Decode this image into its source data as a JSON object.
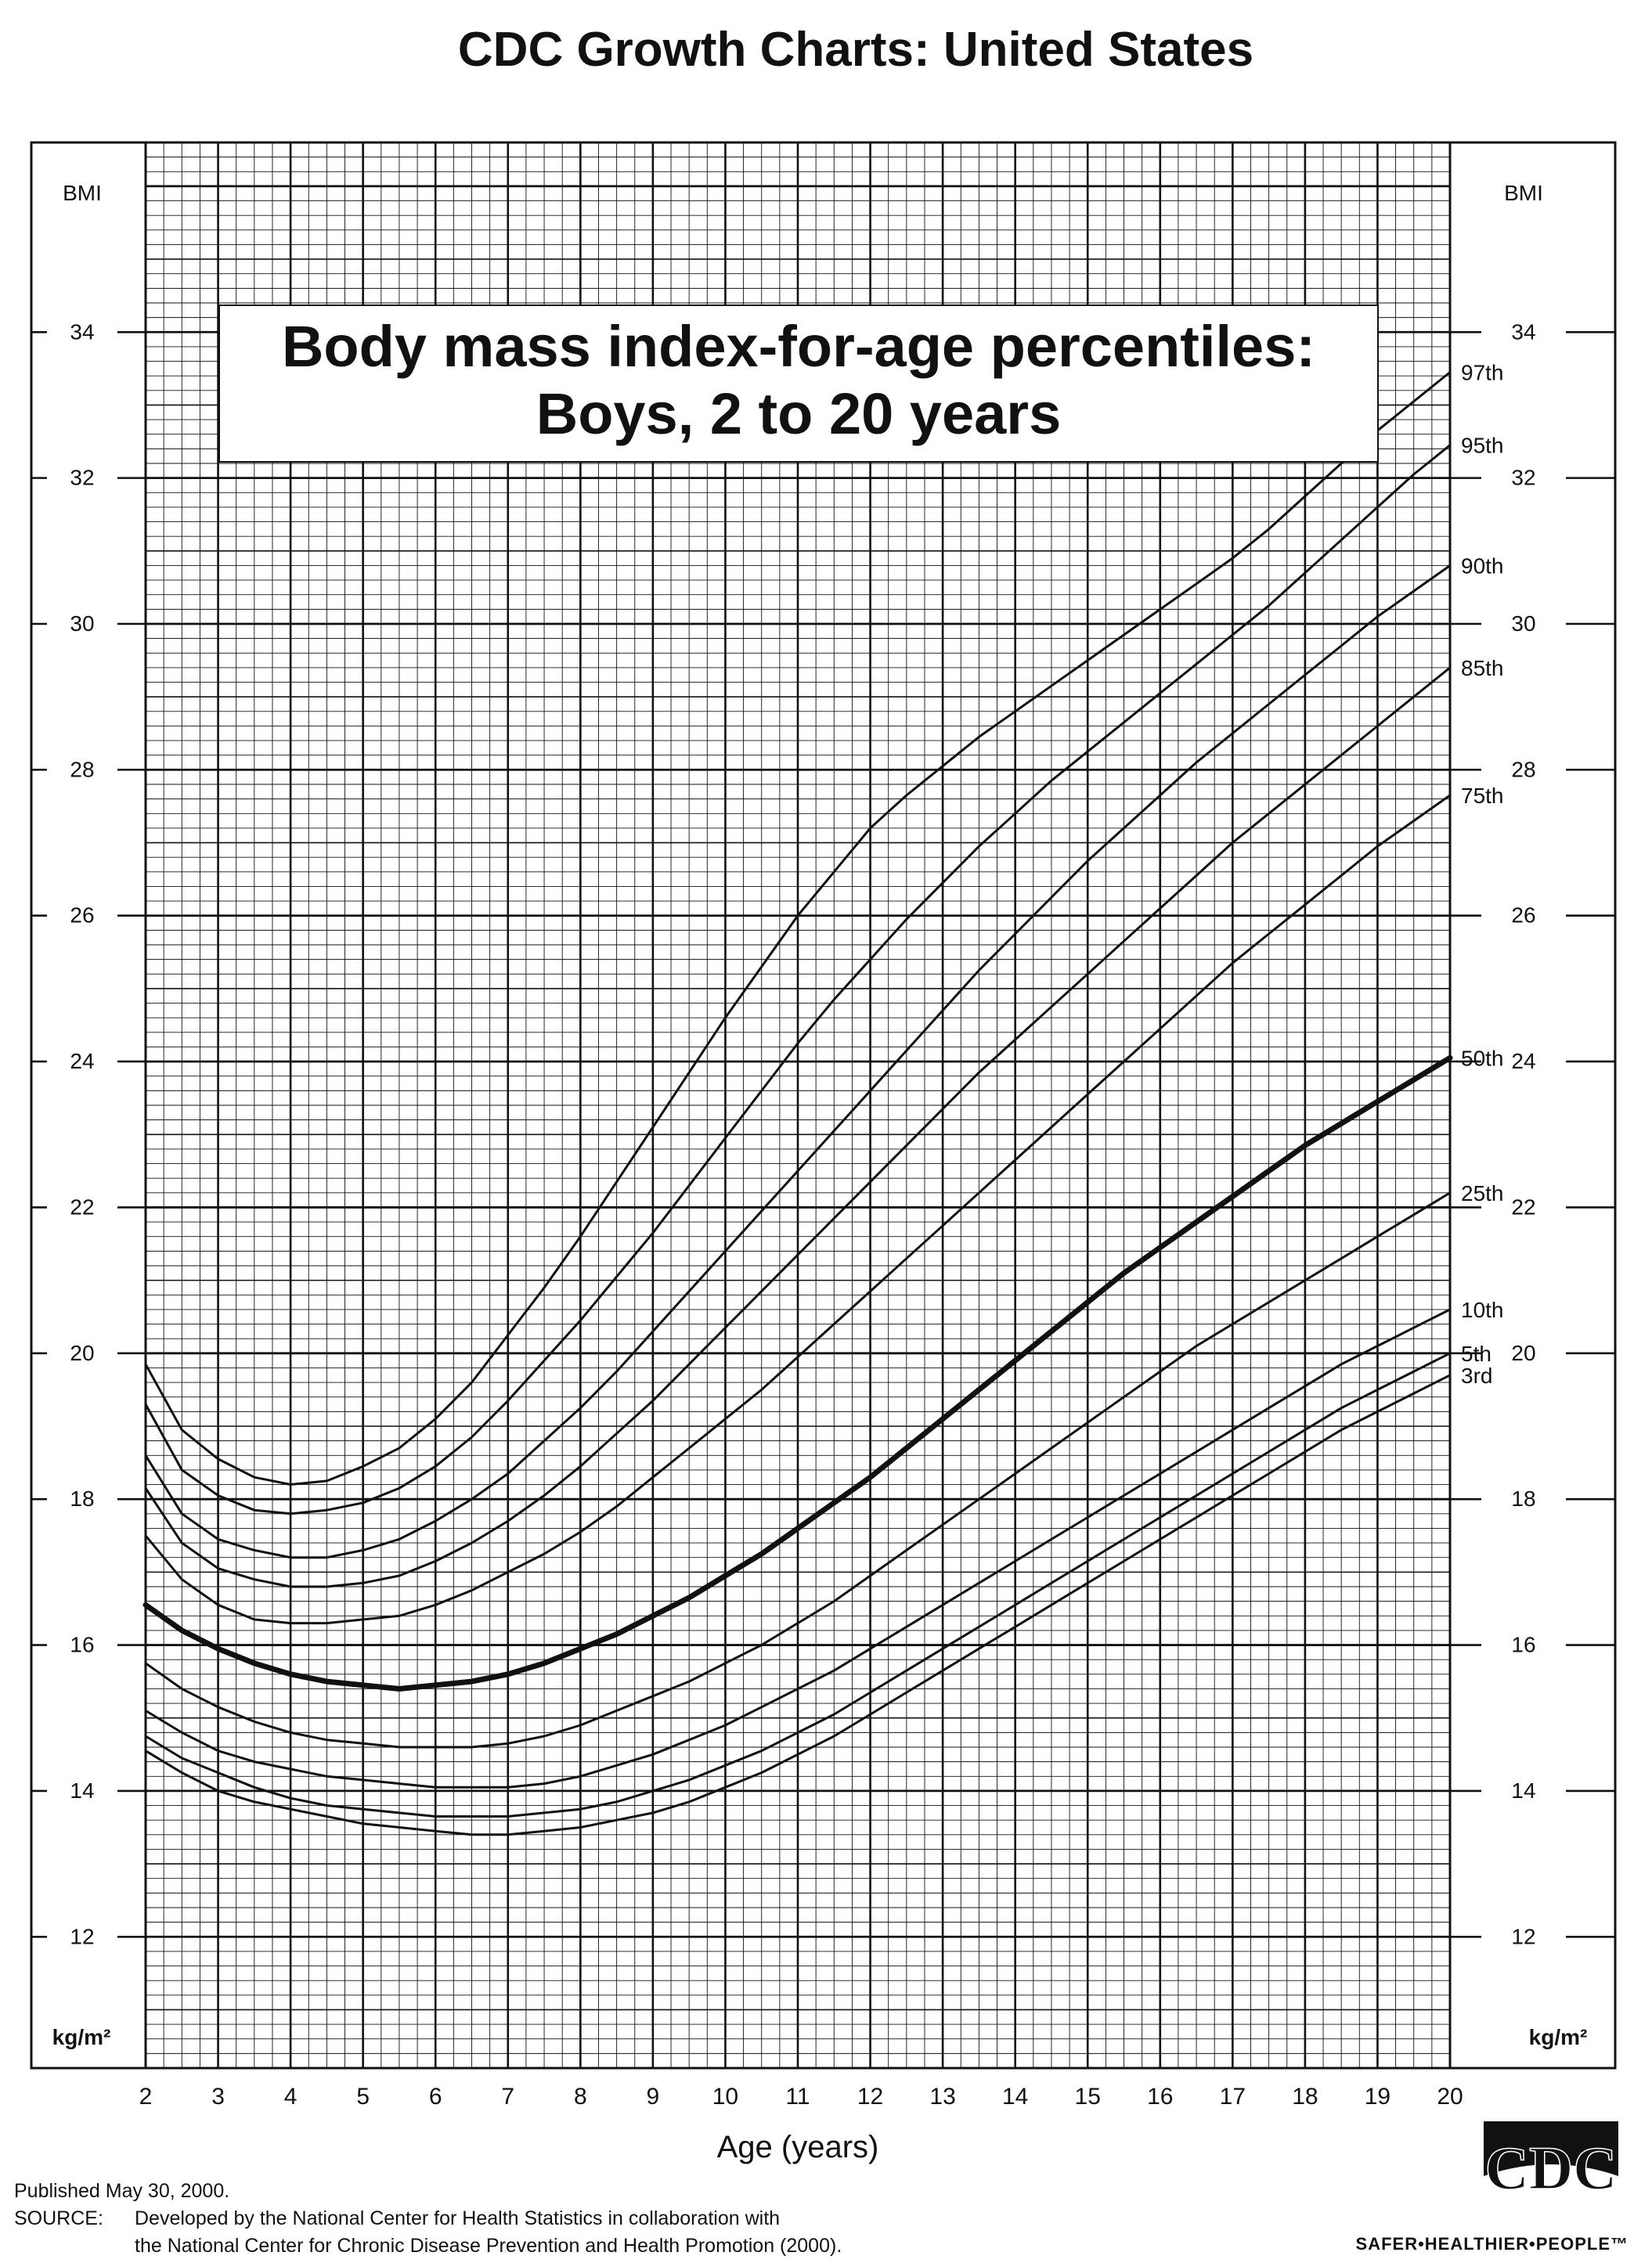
{
  "header": {
    "title": "CDC Growth Charts: United States"
  },
  "chart_data": {
    "type": "line",
    "title": "Body mass index-for-age percentiles:",
    "subtitle": "Boys, 2 to 20 years",
    "xlabel": "Age (years)",
    "ylabel_top": "BMI",
    "ylabel_unit": "kg/m²",
    "xlim": [
      2,
      20
    ],
    "ylim": [
      10.2,
      36.6
    ],
    "x_ticks": [
      2,
      3,
      4,
      5,
      6,
      7,
      8,
      9,
      10,
      11,
      12,
      13,
      14,
      15,
      16,
      17,
      18,
      19,
      20
    ],
    "x_tick_labels": [
      "2",
      "3",
      "4",
      "5",
      "6",
      "7",
      "8",
      "9",
      "10",
      "11",
      "12",
      "13",
      "14",
      "15",
      "16",
      "17",
      "18",
      "19",
      "20"
    ],
    "y_ticks": [
      12,
      14,
      16,
      18,
      20,
      22,
      24,
      26,
      28,
      30,
      32,
      34
    ],
    "y_tick_labels": [
      "12",
      "14",
      "16",
      "18",
      "20",
      "22",
      "24",
      "26",
      "28",
      "30",
      "32",
      "34"
    ],
    "grid": true,
    "x": [
      2,
      2.5,
      3,
      3.5,
      4,
      4.5,
      5,
      5.5,
      6,
      6.5,
      7,
      7.5,
      8,
      8.5,
      9,
      9.5,
      10,
      10.5,
      11,
      11.5,
      12,
      12.5,
      13,
      13.5,
      14,
      14.5,
      15,
      15.5,
      16,
      16.5,
      17,
      17.5,
      18,
      18.5,
      19,
      19.5,
      20
    ],
    "series": [
      {
        "name": "97th",
        "values": [
          19.85,
          18.95,
          18.55,
          18.3,
          18.2,
          18.25,
          18.45,
          18.7,
          19.1,
          19.6,
          20.25,
          20.9,
          21.6,
          22.35,
          23.1,
          23.85,
          24.6,
          25.3,
          26.0,
          26.6,
          27.2,
          27.65,
          28.05,
          28.45,
          28.8,
          29.15,
          29.5,
          29.85,
          30.2,
          30.55,
          30.9,
          31.3,
          31.75,
          32.2,
          32.65,
          33.05,
          33.45
        ],
        "bold": false
      },
      {
        "name": "95th",
        "values": [
          19.3,
          18.4,
          18.05,
          17.85,
          17.8,
          17.85,
          17.95,
          18.15,
          18.45,
          18.85,
          19.35,
          19.9,
          20.45,
          21.05,
          21.65,
          22.3,
          22.95,
          23.6,
          24.25,
          24.85,
          25.4,
          25.95,
          26.45,
          26.95,
          27.4,
          27.85,
          28.25,
          28.65,
          29.05,
          29.45,
          29.85,
          30.25,
          30.7,
          31.15,
          31.6,
          32.05,
          32.45
        ],
        "bold": false
      },
      {
        "name": "90th",
        "values": [
          18.6,
          17.8,
          17.45,
          17.3,
          17.2,
          17.2,
          17.3,
          17.45,
          17.7,
          18.0,
          18.35,
          18.8,
          19.25,
          19.75,
          20.3,
          20.85,
          21.4,
          21.95,
          22.5,
          23.05,
          23.6,
          24.15,
          24.7,
          25.25,
          25.75,
          26.25,
          26.75,
          27.2,
          27.65,
          28.1,
          28.5,
          28.9,
          29.3,
          29.7,
          30.1,
          30.45,
          30.8
        ],
        "bold": false
      },
      {
        "name": "85th",
        "values": [
          18.15,
          17.4,
          17.05,
          16.9,
          16.8,
          16.8,
          16.85,
          16.95,
          17.15,
          17.4,
          17.7,
          18.05,
          18.45,
          18.9,
          19.35,
          19.85,
          20.35,
          20.85,
          21.35,
          21.85,
          22.35,
          22.85,
          23.35,
          23.85,
          24.3,
          24.75,
          25.2,
          25.65,
          26.1,
          26.55,
          27.0,
          27.4,
          27.8,
          28.2,
          28.6,
          29.0,
          29.4
        ],
        "bold": false
      },
      {
        "name": "75th",
        "values": [
          17.5,
          16.9,
          16.55,
          16.35,
          16.3,
          16.3,
          16.35,
          16.4,
          16.55,
          16.75,
          17.0,
          17.25,
          17.55,
          17.9,
          18.3,
          18.7,
          19.1,
          19.5,
          19.95,
          20.4,
          20.85,
          21.3,
          21.75,
          22.2,
          22.65,
          23.1,
          23.55,
          24.0,
          24.45,
          24.9,
          25.35,
          25.75,
          26.15,
          26.55,
          26.95,
          27.3,
          27.65
        ],
        "bold": false
      },
      {
        "name": "50th",
        "values": [
          16.55,
          16.2,
          15.95,
          15.75,
          15.6,
          15.5,
          15.45,
          15.4,
          15.45,
          15.5,
          15.6,
          15.75,
          15.95,
          16.15,
          16.4,
          16.65,
          16.95,
          17.25,
          17.6,
          17.95,
          18.3,
          18.7,
          19.1,
          19.5,
          19.9,
          20.3,
          20.7,
          21.1,
          21.45,
          21.8,
          22.15,
          22.5,
          22.85,
          23.15,
          23.45,
          23.75,
          24.05
        ],
        "bold": true
      },
      {
        "name": "25th",
        "values": [
          15.75,
          15.4,
          15.15,
          14.95,
          14.8,
          14.7,
          14.65,
          14.6,
          14.6,
          14.6,
          14.65,
          14.75,
          14.9,
          15.1,
          15.3,
          15.5,
          15.75,
          16.0,
          16.3,
          16.6,
          16.95,
          17.3,
          17.65,
          18.0,
          18.35,
          18.7,
          19.05,
          19.4,
          19.75,
          20.1,
          20.4,
          20.7,
          21.0,
          21.3,
          21.6,
          21.9,
          22.2
        ],
        "bold": false
      },
      {
        "name": "10th",
        "values": [
          15.1,
          14.8,
          14.55,
          14.4,
          14.3,
          14.2,
          14.15,
          14.1,
          14.05,
          14.05,
          14.05,
          14.1,
          14.2,
          14.35,
          14.5,
          14.7,
          14.9,
          15.15,
          15.4,
          15.65,
          15.95,
          16.25,
          16.55,
          16.85,
          17.15,
          17.45,
          17.75,
          18.05,
          18.35,
          18.65,
          18.95,
          19.25,
          19.55,
          19.85,
          20.1,
          20.35,
          20.6
        ],
        "bold": false
      },
      {
        "name": "5th",
        "values": [
          14.75,
          14.45,
          14.25,
          14.05,
          13.9,
          13.8,
          13.75,
          13.7,
          13.65,
          13.65,
          13.65,
          13.7,
          13.75,
          13.85,
          14.0,
          14.15,
          14.35,
          14.55,
          14.8,
          15.05,
          15.35,
          15.65,
          15.95,
          16.25,
          16.55,
          16.85,
          17.15,
          17.45,
          17.75,
          18.05,
          18.35,
          18.65,
          18.95,
          19.25,
          19.5,
          19.75,
          20.0
        ],
        "bold": false
      },
      {
        "name": "3rd",
        "values": [
          14.55,
          14.25,
          14.0,
          13.85,
          13.75,
          13.65,
          13.55,
          13.5,
          13.45,
          13.4,
          13.4,
          13.45,
          13.5,
          13.6,
          13.7,
          13.85,
          14.05,
          14.25,
          14.5,
          14.75,
          15.05,
          15.35,
          15.65,
          15.95,
          16.25,
          16.55,
          16.85,
          17.15,
          17.45,
          17.75,
          18.05,
          18.35,
          18.65,
          18.95,
          19.2,
          19.45,
          19.7
        ],
        "bold": false
      }
    ]
  },
  "footer": {
    "published": "Published May 30, 2000.",
    "source_label": "SOURCE:",
    "source_line1": "Developed by the National Center for Health Statistics in collaboration with",
    "source_line2": "the National Center for Chronic Disease Prevention and Health Promotion (2000)."
  },
  "logo": {
    "name": "cdc-logo",
    "text": "CDC",
    "tagline": "SAFER•HEALTHIER•PEOPLE™"
  },
  "colors": {
    "ink": "#111111",
    "background": "#ffffff"
  }
}
